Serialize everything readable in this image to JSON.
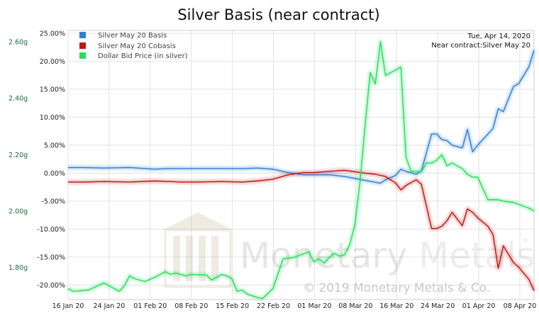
{
  "chart_data": {
    "type": "line",
    "title": "Silver Basis (near contract)",
    "info": {
      "date": "Tue, Apr 14, 2020",
      "near_contract": "Near contract:Silver May 20"
    },
    "watermark": {
      "name_part1": "Monetary",
      "name_part2": "Metals",
      "registered": "®",
      "copyright": "© 2019 Monetary Metals & Co."
    },
    "x_ticks": [
      "16 Jan 20",
      "24 Jan 20",
      "01 Feb 20",
      "08 Feb 20",
      "15 Feb 20",
      "22 Feb 20",
      "01 Mar 20",
      "08 Mar 20",
      "16 Mar 20",
      "24 Mar 20",
      "01 Apr 20",
      "08 Apr 20"
    ],
    "left_axis": {
      "ticks": [
        "2.60g",
        "2.40g",
        "2.20g",
        "2.00g",
        "1.80g"
      ],
      "ylim": [
        1.686,
        2.64
      ],
      "color": "#1f6b3a"
    },
    "right_axis": {
      "ticks": [
        "25.00%",
        "20.00%",
        "15.00%",
        "10.00%",
        "5.00%",
        "0.00%",
        "-5.00%",
        "-10.00%",
        "-15.00%",
        "-20.00%"
      ],
      "ylim": [
        -22.6,
        25.5
      ]
    },
    "x_range": [
      0,
      91
    ],
    "grid": true,
    "legend_position": "top-left",
    "series": [
      {
        "name": "Silver May 20 Basis",
        "axis": "right",
        "color": "#2f7fd3",
        "x": [
          0,
          3,
          7,
          12,
          17,
          19,
          20,
          22,
          25,
          30,
          34,
          37,
          40,
          43,
          46,
          48,
          51,
          54,
          58,
          61,
          62,
          64,
          65,
          66,
          68,
          69,
          71,
          72,
          73,
          74,
          75,
          77,
          78,
          79,
          80,
          82,
          83,
          84,
          85,
          87,
          88,
          90,
          91
        ],
        "values": [
          1.0,
          1.0,
          0.9,
          1.0,
          0.7,
          0.8,
          0.8,
          0.8,
          0.8,
          0.8,
          0.8,
          0.9,
          0.7,
          0.1,
          -0.3,
          -0.3,
          -0.3,
          -0.6,
          -1.3,
          -1.8,
          -1.2,
          -0.4,
          0.7,
          0.3,
          -0.2,
          0.4,
          7.0,
          7.0,
          6.0,
          5.8,
          5.0,
          4.5,
          7.8,
          3.8,
          5.0,
          7.0,
          8.0,
          11.5,
          11.0,
          15.5,
          16.0,
          19.0,
          22.0
        ]
      },
      {
        "name": "Silver May 20 Cobasis",
        "axis": "right",
        "color": "#c01616",
        "x": [
          0,
          3,
          7,
          12,
          17,
          19,
          20,
          22,
          25,
          30,
          34,
          37,
          40,
          43,
          46,
          48,
          51,
          54,
          58,
          60,
          62,
          64,
          65,
          66,
          68,
          69,
          71,
          72,
          73,
          74,
          75,
          77,
          78,
          79,
          80,
          82,
          83,
          84,
          85,
          87,
          88,
          90,
          91
        ],
        "values": [
          -1.6,
          -1.6,
          -1.5,
          -1.6,
          -1.4,
          -1.5,
          -1.5,
          -1.6,
          -1.6,
          -1.5,
          -1.6,
          -1.4,
          -1.1,
          -0.3,
          0.1,
          0.1,
          0.3,
          0.5,
          0.0,
          -0.2,
          -0.6,
          -1.8,
          -3.0,
          -2.2,
          -1.2,
          -2.0,
          -9.9,
          -9.9,
          -9.5,
          -8.5,
          -7.0,
          -9.4,
          -6.4,
          -7.0,
          -8.0,
          -9.5,
          -11.0,
          -17.0,
          -13.0,
          -16.0,
          -16.8,
          -19.0,
          -21.0
        ]
      },
      {
        "name": "Dollar Bid Price (in silver)",
        "axis": "left",
        "color": "#22e05a",
        "x": [
          0,
          1,
          4,
          7,
          10,
          11,
          12,
          13,
          14,
          15,
          17,
          19,
          20,
          21,
          23,
          24,
          27,
          28,
          29,
          30,
          31,
          32,
          33,
          34,
          35,
          37,
          38,
          40,
          42,
          44,
          47,
          48,
          49,
          50,
          51,
          52,
          53,
          54,
          55,
          56,
          57,
          58,
          59,
          60,
          61,
          62,
          63,
          65,
          66,
          67,
          69,
          70,
          71,
          72,
          73,
          74,
          75,
          77,
          78,
          79,
          80,
          82,
          84,
          85,
          87,
          90,
          91
        ],
        "values": [
          1.725,
          1.715,
          1.72,
          1.745,
          1.715,
          1.735,
          1.77,
          1.76,
          1.755,
          1.75,
          1.765,
          1.785,
          1.775,
          1.78,
          1.77,
          1.775,
          1.773,
          1.755,
          1.765,
          1.775,
          1.77,
          1.76,
          1.715,
          1.72,
          1.705,
          1.693,
          1.69,
          1.725,
          1.83,
          1.835,
          1.855,
          1.82,
          1.83,
          1.815,
          1.835,
          1.85,
          1.84,
          1.845,
          1.88,
          1.95,
          2.1,
          2.3,
          2.49,
          2.45,
          2.6,
          2.48,
          2.49,
          2.51,
          2.19,
          2.14,
          2.14,
          2.17,
          2.17,
          2.18,
          2.2,
          2.16,
          2.17,
          2.15,
          2.13,
          2.12,
          2.12,
          2.04,
          2.04,
          2.035,
          2.03,
          2.01,
          2.0
        ]
      }
    ]
  }
}
